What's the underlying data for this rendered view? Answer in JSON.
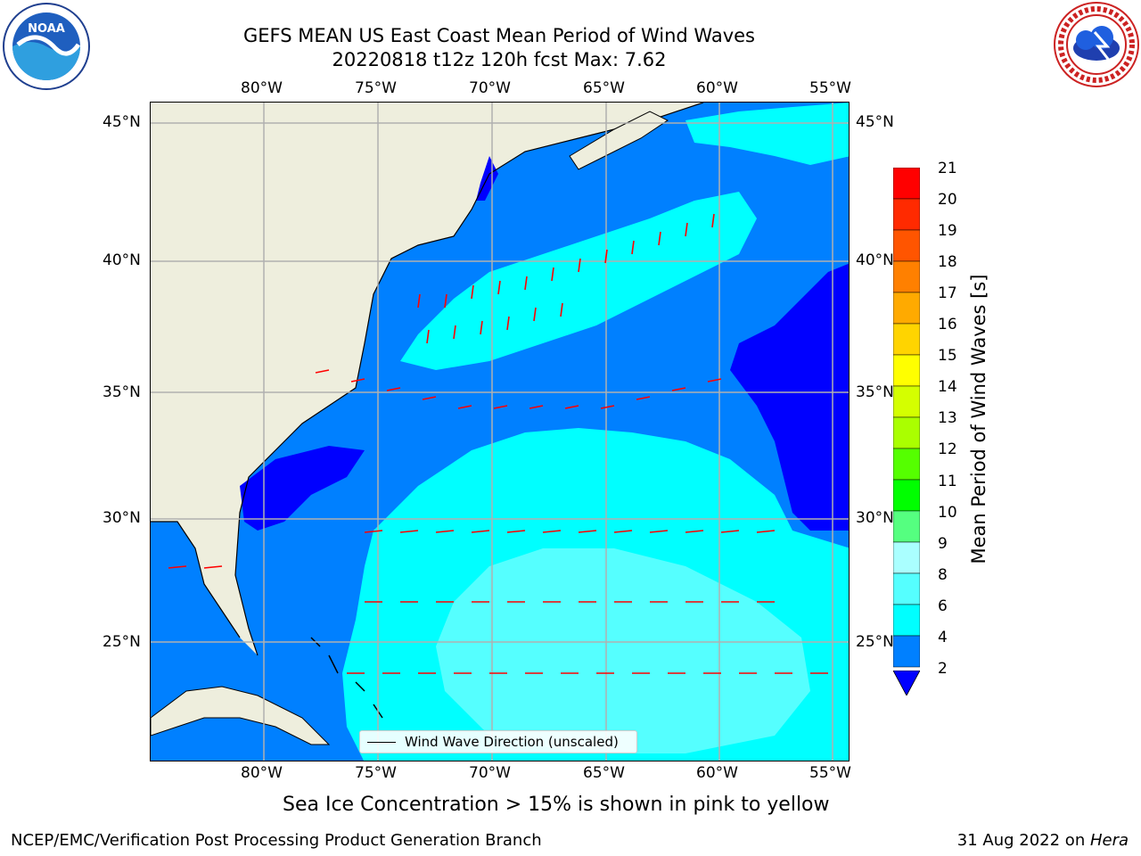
{
  "header": {
    "title_line1": "GEFS MEAN US East Coast Mean Period of Wind Waves",
    "title_line2": "20220818 t12z 120h fcst   Max: 7.62"
  },
  "logos": {
    "left": "noaa-logo",
    "right": "nws-logo"
  },
  "axes": {
    "lon_ticks": [
      "80°W",
      "75°W",
      "70°W",
      "65°W",
      "60°W",
      "55°W"
    ],
    "lat_ticks": [
      "45°N",
      "40°N",
      "35°N",
      "30°N",
      "25°N"
    ]
  },
  "colorbar": {
    "title": "Mean Period of Wind Waves [s]",
    "ticks": [
      "21",
      "20",
      "19",
      "18",
      "17",
      "16",
      "15",
      "14",
      "13",
      "12",
      "11",
      "10",
      "9",
      "8",
      "6",
      "4",
      "2"
    ],
    "colors": [
      "#ff0000",
      "#ff2a00",
      "#ff5500",
      "#ff8000",
      "#ffaa00",
      "#ffd400",
      "#ffff00",
      "#d4ff00",
      "#aaff00",
      "#55ff00",
      "#00ff00",
      "#00ff40",
      "#55ff80",
      "#aaffff",
      "#55ffff",
      "#00ffff",
      "#0080ff"
    ],
    "under_color": "#0000ff"
  },
  "legend": {
    "label": "Wind Wave Direction (unscaled)"
  },
  "note": "Sea Ice Concentration > 15% is shown in pink to yellow",
  "footer": {
    "left": "NCEP/EMC/Verification Post Processing Product Generation Branch",
    "date": "31 Aug 2022 on ",
    "machine": "Hera"
  },
  "map_colors": {
    "land": "#eeeedd",
    "deep_blue": "#0000ff",
    "mid_blue": "#0080ff",
    "cyan": "#00ffff",
    "light_cyan": "#55ffff",
    "arrow": "#ff0000",
    "grid": "#b0b0b0"
  }
}
